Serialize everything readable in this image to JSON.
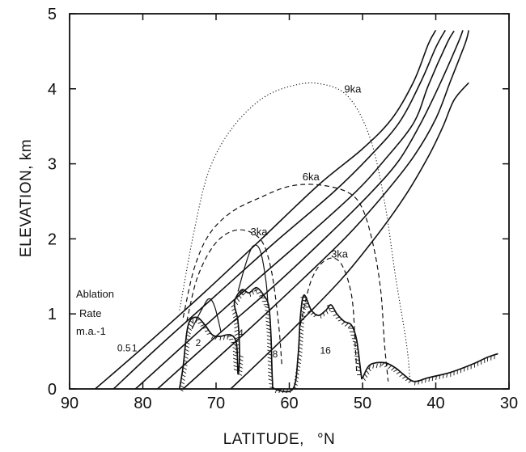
{
  "chart_data": {
    "type": "line",
    "xlabel": "LATITUDE,",
    "xlabel_unit": "°N",
    "ylabel": "ELEVATION, km",
    "xlim": [
      90,
      30
    ],
    "ylim": [
      0,
      5
    ],
    "x_ticks": [
      90,
      80,
      70,
      60,
      50,
      40,
      30
    ],
    "y_ticks": [
      0,
      1,
      2,
      3,
      4,
      5
    ],
    "grid": false,
    "legend_title_lines": [
      "Ablation",
      "Rate",
      "m.a.-1"
    ],
    "colors": {
      "line": "#111111",
      "frame": "#111111",
      "background": "#ffffff"
    },
    "equilibrium_lines": [
      {
        "label": "0.5",
        "points": [
          [
            86.5,
            0
          ],
          [
            80,
            0.55
          ],
          [
            72,
            1.25
          ],
          [
            64,
            1.98
          ],
          [
            56,
            2.72
          ],
          [
            50,
            3.2
          ],
          [
            46,
            3.6
          ],
          [
            43,
            4.1
          ],
          [
            41,
            4.6
          ],
          [
            40,
            4.78
          ]
        ]
      },
      {
        "label": "1",
        "points": [
          [
            84,
            0
          ],
          [
            78,
            0.55
          ],
          [
            70,
            1.25
          ],
          [
            62,
            1.95
          ],
          [
            54,
            2.62
          ],
          [
            49,
            3.1
          ],
          [
            45,
            3.55
          ],
          [
            42,
            4.1
          ],
          [
            40,
            4.55
          ],
          [
            38.7,
            4.78
          ]
        ]
      },
      {
        "label": "2",
        "points": [
          [
            81,
            0
          ],
          [
            74,
            0.62
          ],
          [
            66,
            1.32
          ],
          [
            58,
            2.0
          ],
          [
            51,
            2.62
          ],
          [
            47,
            3.05
          ],
          [
            43,
            3.55
          ],
          [
            41,
            4.05
          ],
          [
            38.5,
            4.6
          ],
          [
            37.5,
            4.77
          ]
        ]
      },
      {
        "label": "4",
        "points": [
          [
            78,
            0
          ],
          [
            70,
            0.7
          ],
          [
            62,
            1.38
          ],
          [
            55,
            2.02
          ],
          [
            49,
            2.6
          ],
          [
            45,
            3.05
          ],
          [
            42,
            3.55
          ],
          [
            39.5,
            4.05
          ],
          [
            37,
            4.6
          ],
          [
            36.3,
            4.78
          ]
        ]
      },
      {
        "label": "8",
        "points": [
          [
            74.5,
            0
          ],
          [
            66,
            0.75
          ],
          [
            58,
            1.48
          ],
          [
            52,
            2.05
          ],
          [
            47,
            2.6
          ],
          [
            43,
            3.1
          ],
          [
            40,
            3.6
          ],
          [
            38,
            4.1
          ],
          [
            36,
            4.6
          ],
          [
            35.5,
            4.78
          ]
        ]
      },
      {
        "label": "16",
        "points": [
          [
            68,
            0
          ],
          [
            60,
            0.75
          ],
          [
            53,
            1.45
          ],
          [
            48,
            2.05
          ],
          [
            44,
            2.6
          ],
          [
            41,
            3.1
          ],
          [
            39,
            3.5
          ],
          [
            37.5,
            3.85
          ],
          [
            35.5,
            4.08
          ]
        ]
      }
    ],
    "labels": [
      {
        "text": "0.5",
        "x": 83.5,
        "y": 0.5
      },
      {
        "text": "1",
        "x": 81.5,
        "y": 0.5
      },
      {
        "text": "2",
        "x": 72.8,
        "y": 0.57
      },
      {
        "text": "4",
        "x": 67,
        "y": 0.7
      },
      {
        "text": "8",
        "x": 62.3,
        "y": 0.42
      },
      {
        "text": "16",
        "x": 55.8,
        "y": 0.47
      },
      {
        "text": "9ka",
        "x": 52.5,
        "y": 3.95
      },
      {
        "text": "6ka",
        "x": 58.2,
        "y": 2.78
      },
      {
        "text": "3ka",
        "x": 65.3,
        "y": 2.05
      },
      {
        "text": "3ka",
        "x": 54.3,
        "y": 1.75
      }
    ],
    "ice_profiles": [
      {
        "label": "9ka",
        "style": "dotted",
        "points": [
          [
            75,
            1.05
          ],
          [
            73,
            2.1
          ],
          [
            71,
            2.9
          ],
          [
            68,
            3.45
          ],
          [
            64,
            3.85
          ],
          [
            60,
            4.03
          ],
          [
            56,
            4.07
          ],
          [
            52,
            3.9
          ],
          [
            49,
            3.35
          ],
          [
            47,
            2.5
          ],
          [
            45.5,
            1.5
          ],
          [
            44,
            0.6
          ],
          [
            43.5,
            0.1
          ]
        ]
      },
      {
        "label": "6ka",
        "style": "dashed",
        "points": [
          [
            74.5,
            0.95
          ],
          [
            73,
            1.6
          ],
          [
            71,
            2.05
          ],
          [
            68,
            2.35
          ],
          [
            64,
            2.55
          ],
          [
            60,
            2.7
          ],
          [
            56,
            2.72
          ],
          [
            52,
            2.62
          ],
          [
            50,
            2.4
          ],
          [
            48.5,
            1.9
          ],
          [
            47.5,
            1.3
          ],
          [
            47,
            0.6
          ],
          [
            46.5,
            0.1
          ]
        ]
      },
      {
        "label": "3ka",
        "style": "dashed",
        "points": [
          [
            74,
            0.9
          ],
          [
            72.5,
            1.5
          ],
          [
            70,
            1.95
          ],
          [
            67,
            2.12
          ],
          [
            64,
            2.0
          ],
          [
            62.5,
            1.6
          ],
          [
            61.5,
            0.9
          ],
          [
            61,
            0.3
          ]
        ]
      },
      {
        "label": "3ka",
        "style": "dashed",
        "points": [
          [
            58.5,
            0.85
          ],
          [
            57,
            1.45
          ],
          [
            55,
            1.72
          ],
          [
            53,
            1.68
          ],
          [
            51.5,
            1.25
          ],
          [
            51,
            0.6
          ],
          [
            50.8,
            0.2
          ]
        ]
      },
      {
        "label": "",
        "style": "solid",
        "points": [
          [
            73.3,
            0.8
          ],
          [
            72,
            1.05
          ],
          [
            71,
            1.2
          ],
          [
            70.2,
            1.1
          ],
          [
            69.3,
            0.75
          ]
        ]
      },
      {
        "label": "",
        "style": "solid",
        "points": [
          [
            67,
            1.3
          ],
          [
            66,
            1.65
          ],
          [
            65,
            1.9
          ],
          [
            64,
            1.85
          ],
          [
            63.2,
            1.45
          ],
          [
            62.9,
            1.1
          ]
        ]
      }
    ],
    "ground_profile": {
      "style": "hatched",
      "points": [
        [
          75,
          0
        ],
        [
          74.5,
          0.3
        ],
        [
          74,
          0.75
        ],
        [
          73.5,
          0.92
        ],
        [
          72.5,
          0.95
        ],
        [
          71.5,
          0.85
        ],
        [
          70.5,
          0.72
        ],
        [
          69.5,
          0.7
        ],
        [
          68,
          0.72
        ],
        [
          67.2,
          0.6
        ],
        [
          67,
          0.2
        ],
        [
          66.8,
          0.45
        ],
        [
          67,
          0.9
        ],
        [
          67.5,
          1.15
        ],
        [
          66.5,
          1.32
        ],
        [
          65.5,
          1.28
        ],
        [
          64.5,
          1.35
        ],
        [
          63.5,
          1.25
        ],
        [
          62.8,
          1.1
        ],
        [
          62.5,
          0.7
        ],
        [
          62.3,
          0.1
        ],
        [
          62,
          0
        ],
        [
          59.5,
          0
        ],
        [
          58.8,
          0.45
        ],
        [
          58.5,
          0.95
        ],
        [
          58,
          1.25
        ],
        [
          57,
          1.05
        ],
        [
          56,
          0.98
        ],
        [
          55,
          1.05
        ],
        [
          54.3,
          1.12
        ],
        [
          53.5,
          1.0
        ],
        [
          52.5,
          0.9
        ],
        [
          51.5,
          0.85
        ],
        [
          50.8,
          0.65
        ],
        [
          50.2,
          0.2
        ],
        [
          50,
          0.15
        ],
        [
          49,
          0.32
        ],
        [
          47,
          0.35
        ],
        [
          45.5,
          0.28
        ],
        [
          44.5,
          0.2
        ],
        [
          43,
          0.1
        ],
        [
          41,
          0.15
        ],
        [
          38,
          0.22
        ],
        [
          35,
          0.33
        ],
        [
          33,
          0.42
        ],
        [
          31.5,
          0.47
        ]
      ]
    }
  }
}
